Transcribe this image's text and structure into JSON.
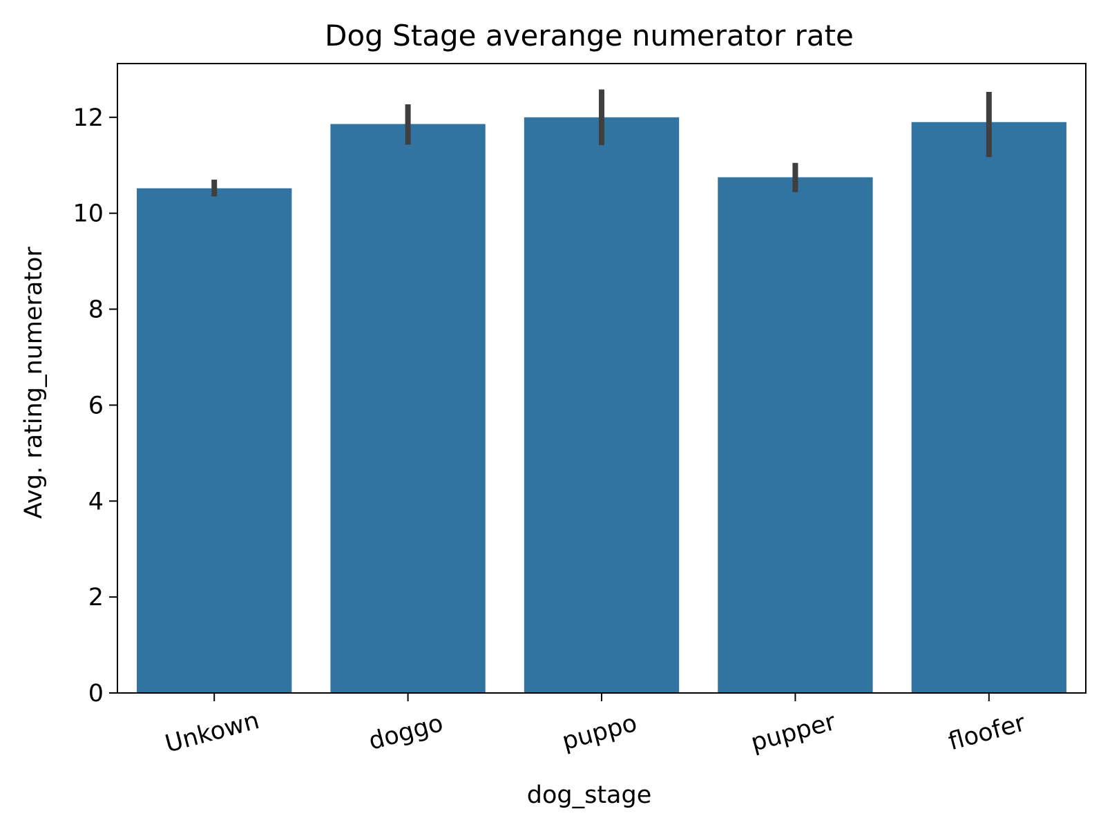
{
  "chart_data": {
    "type": "bar",
    "title": "Dog Stage averange numerator rate",
    "xlabel": "dog_stage",
    "ylabel": "Avg. rating_numerator",
    "categories": [
      "Unkown",
      "doggo",
      "puppo",
      "pupper",
      "floofer"
    ],
    "values": [
      10.52,
      11.86,
      12.0,
      10.75,
      11.9
    ],
    "error_low": [
      10.35,
      11.43,
      11.42,
      10.44,
      11.17
    ],
    "error_high": [
      10.7,
      12.27,
      12.58,
      11.05,
      12.53
    ],
    "yticks": [
      0,
      2,
      4,
      6,
      8,
      10,
      12
    ],
    "ylim": [
      0,
      13.12
    ],
    "bar_color": "#3274a1",
    "errorbar_color": "#3f3f3f",
    "grid": false,
    "legend": "none"
  }
}
